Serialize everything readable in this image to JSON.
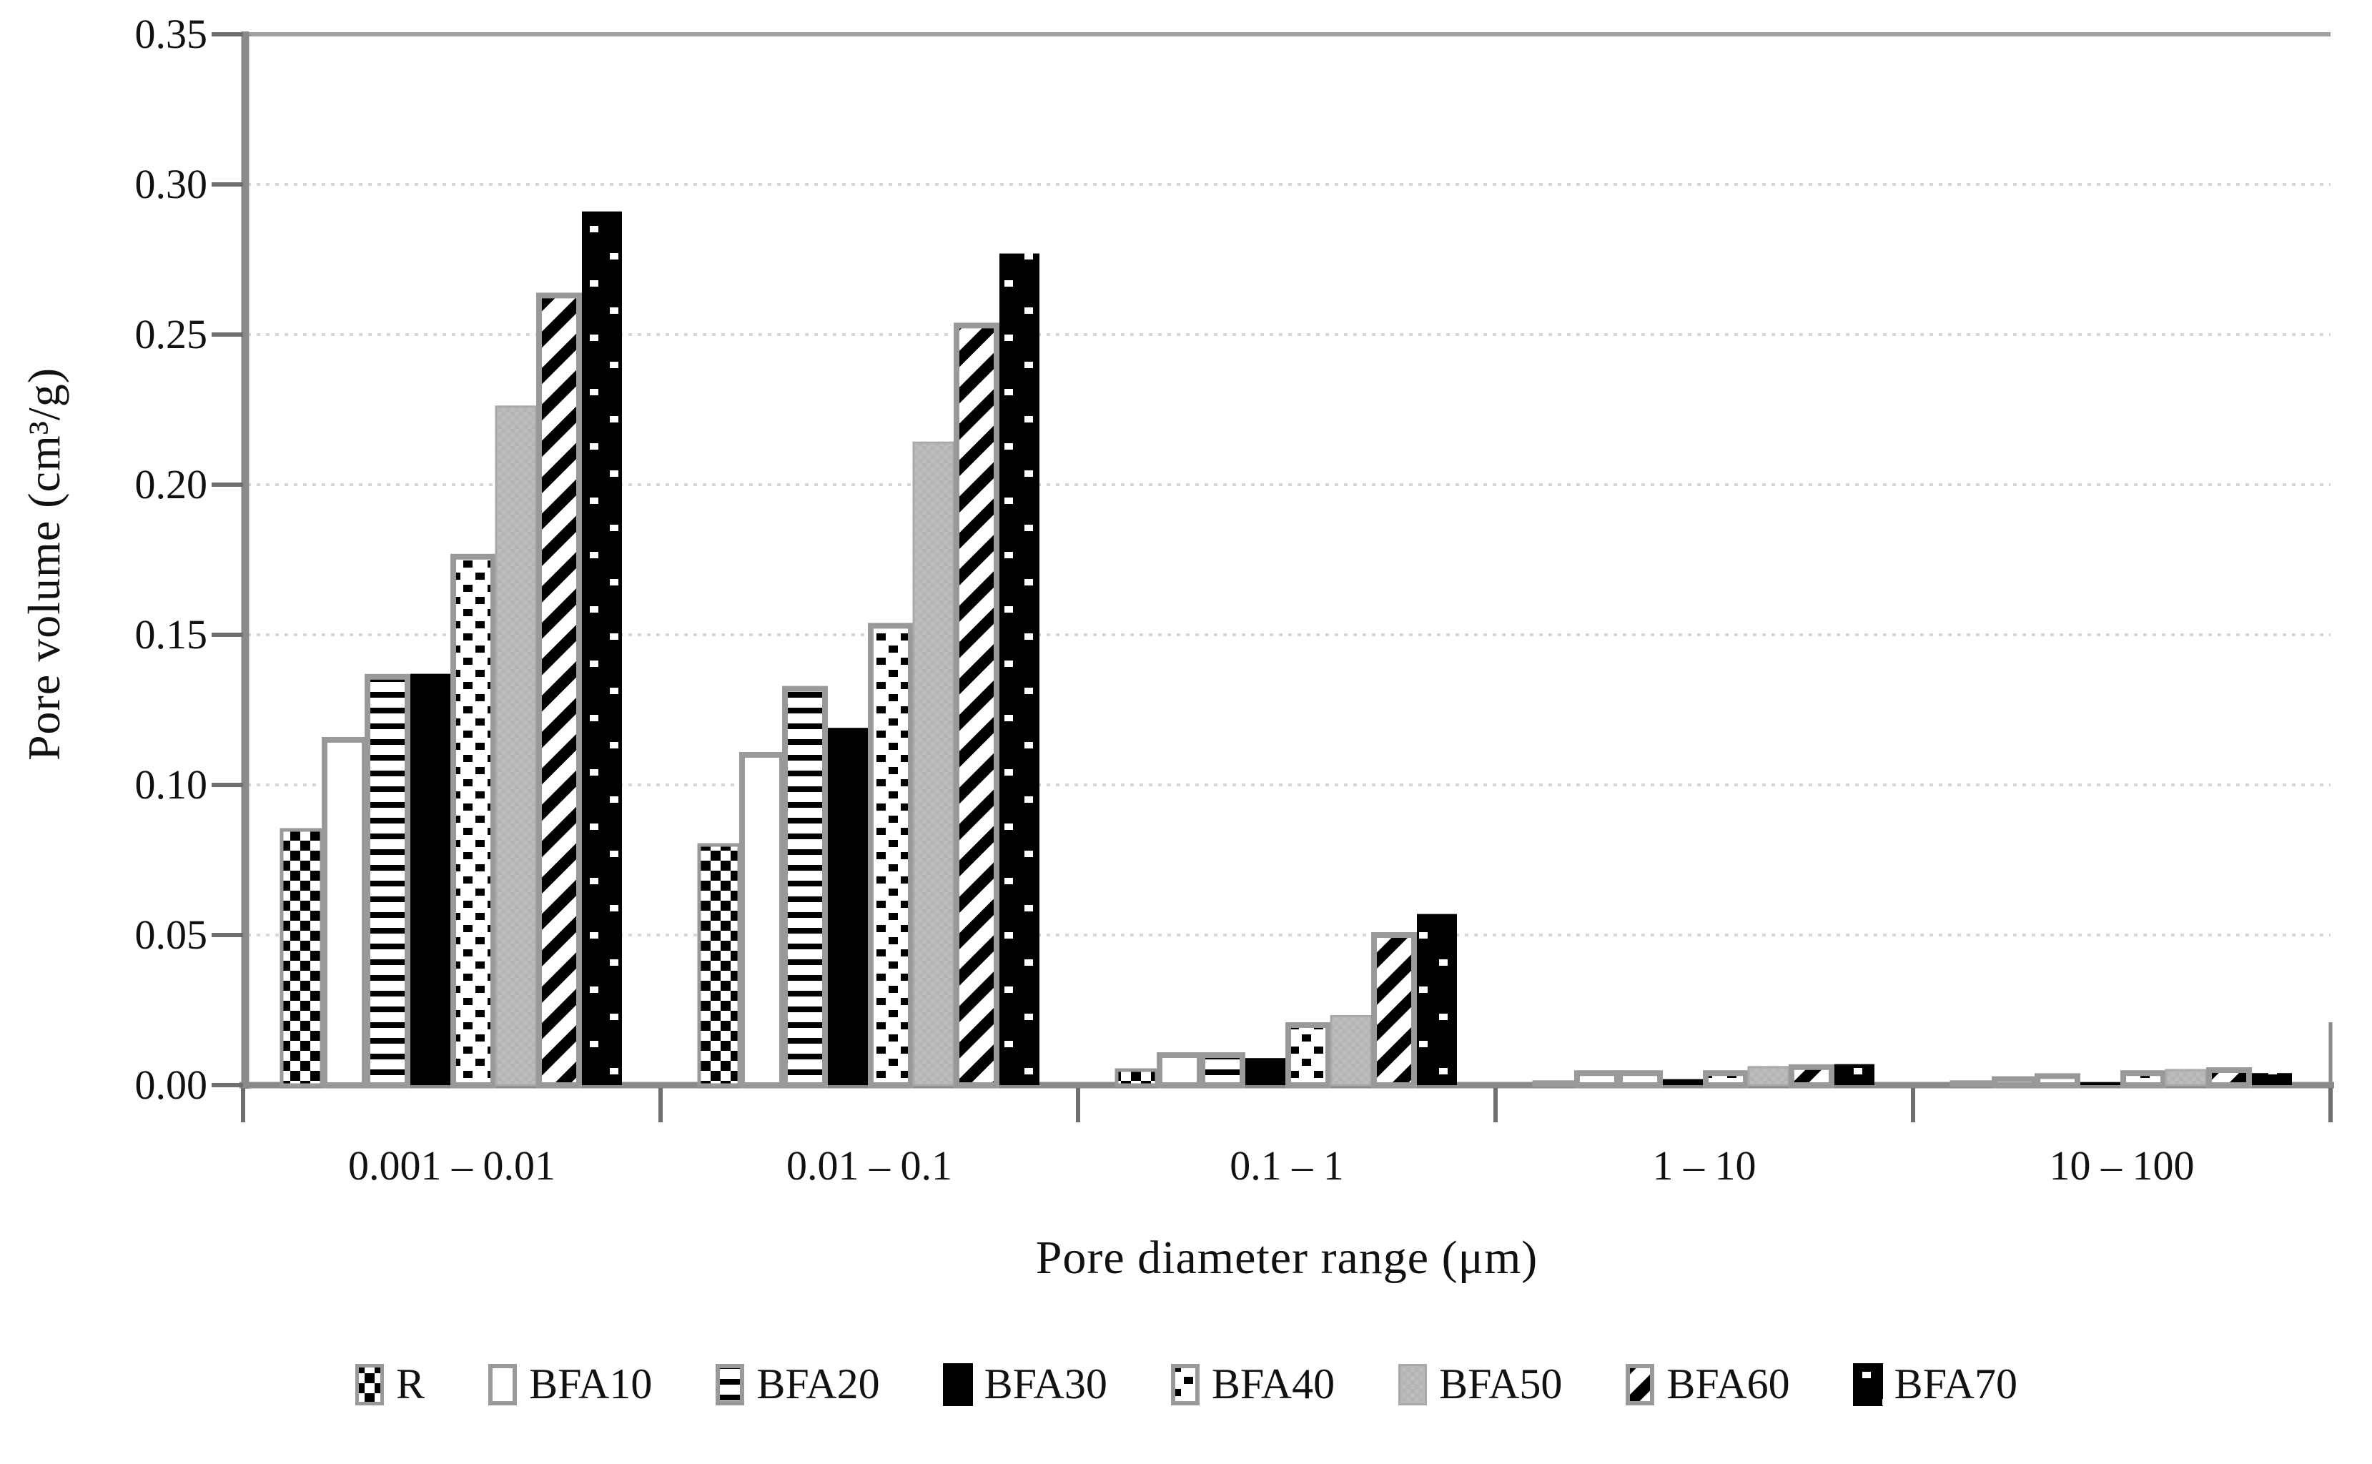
{
  "chart_data": {
    "type": "bar",
    "title": "",
    "xlabel": "Pore diameter range (μm)",
    "ylabel": "Pore volume (cm³/g)",
    "categories": [
      "0.001 – 0.01",
      "0.01 – 0.1",
      "0.1 – 1",
      "1 – 10",
      "10 – 100"
    ],
    "y_tick_labels": [
      "0.00",
      "0.05",
      "0.10",
      "0.15",
      "0.20",
      "0.25",
      "0.30",
      "0.35"
    ],
    "ylim": [
      0,
      0.35
    ],
    "y_step": 0.05,
    "grid": "horizontal-dotted",
    "legend_position": "bottom",
    "series": [
      {
        "name": "R",
        "pattern": "checkerboard",
        "values": [
          0.085,
          0.08,
          0.005,
          0.001,
          0.001
        ]
      },
      {
        "name": "BFA10",
        "pattern": "white",
        "values": [
          0.115,
          0.11,
          0.01,
          0.004,
          0.002
        ]
      },
      {
        "name": "BFA20",
        "pattern": "horizontal-stripes",
        "values": [
          0.136,
          0.132,
          0.01,
          0.004,
          0.003
        ]
      },
      {
        "name": "BFA30",
        "pattern": "solid-black",
        "values": [
          0.137,
          0.119,
          0.009,
          0.002,
          0.001
        ]
      },
      {
        "name": "BFA40",
        "pattern": "dotted-checker",
        "values": [
          0.176,
          0.153,
          0.02,
          0.004,
          0.004
        ]
      },
      {
        "name": "BFA50",
        "pattern": "solid-gray",
        "values": [
          0.226,
          0.214,
          0.023,
          0.006,
          0.005
        ]
      },
      {
        "name": "BFA60",
        "pattern": "diagonal-stripes",
        "values": [
          0.263,
          0.253,
          0.05,
          0.006,
          0.005
        ]
      },
      {
        "name": "BFA70",
        "pattern": "black-white-dots",
        "values": [
          0.291,
          0.277,
          0.057,
          0.007,
          0.004
        ]
      }
    ]
  },
  "colors": {
    "bar_border": "#999999",
    "gray_fill": "#b5b5b5",
    "gray_fill_border": "#a9a9a9",
    "axis": "#8a8a8a",
    "tick": "#6e6e6e",
    "gridline": "#d6d6d6",
    "top_border": "#a0a0a0",
    "black": "#000000",
    "white": "#ffffff",
    "text": "#111111"
  }
}
